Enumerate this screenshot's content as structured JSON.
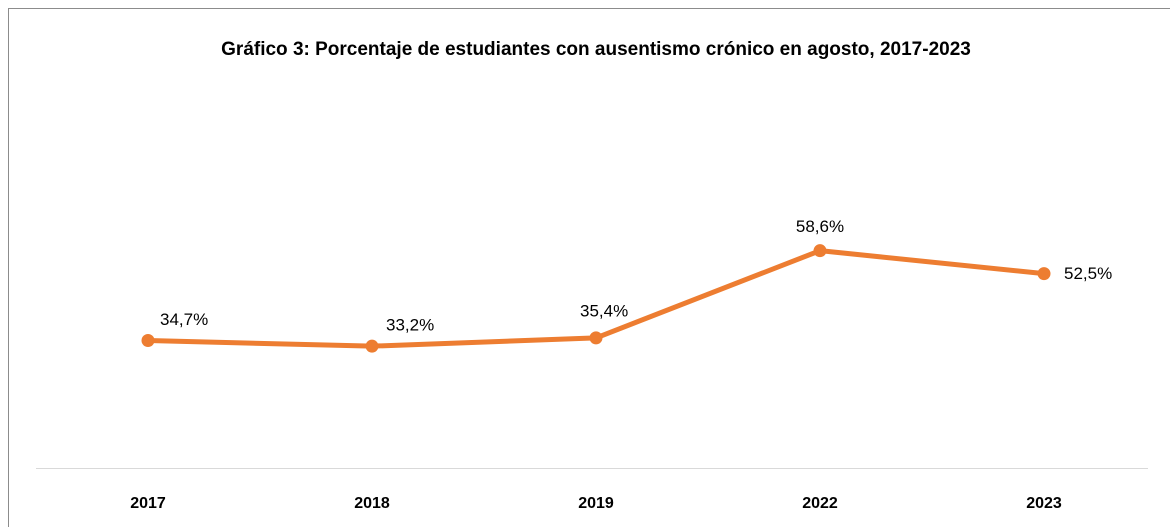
{
  "chart_data": {
    "type": "line",
    "title": "Gráfico 3: Porcentaje de estudiantes con ausentismo crónico en agosto, 2017-2023",
    "categories": [
      "2017",
      "2018",
      "2019",
      "2022",
      "2023"
    ],
    "values": [
      34.7,
      33.2,
      35.4,
      58.6,
      52.5
    ],
    "value_labels": [
      "34,7%",
      "33,2%",
      "35,4%",
      "58,6%",
      "52,5%"
    ],
    "color": "#ED7D31",
    "ylim": [
      0,
      100
    ]
  }
}
